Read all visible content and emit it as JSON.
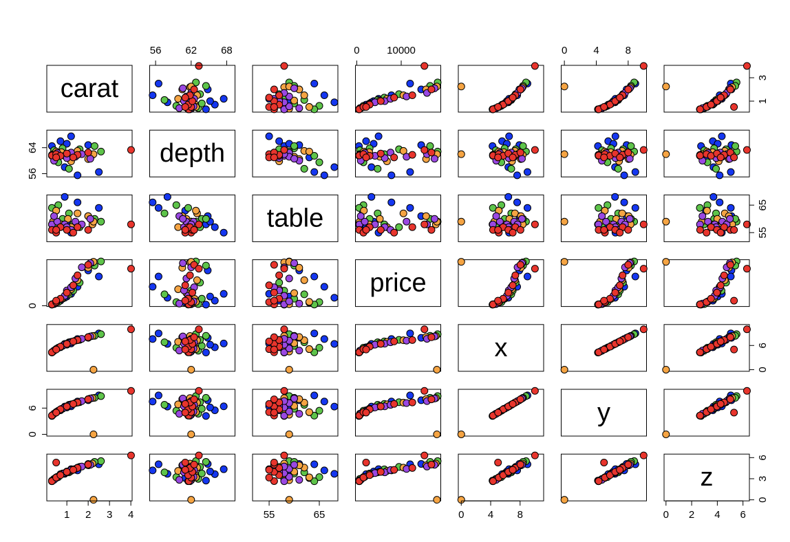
{
  "chart_data": {
    "type": "pairs",
    "variables": [
      {
        "label": "carat",
        "lim": [
          0.06,
          4.06
        ],
        "xticks": [
          1,
          2,
          3,
          4
        ],
        "yticks": [
          1,
          3
        ]
      },
      {
        "label": "depth",
        "lim": [
          55.0,
          69.4
        ],
        "xticks": [
          56,
          62,
          68
        ],
        "yticks": [
          56,
          64
        ]
      },
      {
        "label": "table",
        "lim": [
          51.7,
          68.7
        ],
        "xticks": [
          55,
          65
        ],
        "yticks": [
          55,
          65
        ]
      },
      {
        "label": "price",
        "lim": [
          -300,
          18900
        ],
        "xticks": [
          0,
          10000
        ],
        "yticks": [
          0
        ]
      },
      {
        "label": "x",
        "lim": [
          -0.4,
          11.2
        ],
        "xticks": [
          0,
          4,
          8
        ],
        "yticks": [
          0,
          6
        ]
      },
      {
        "label": "y",
        "lim": [
          -0.4,
          10.3
        ],
        "xticks": [
          0,
          4,
          8
        ],
        "yticks": [
          0,
          6
        ]
      },
      {
        "label": "z",
        "lim": [
          -0.15,
          6.5
        ],
        "xticks": [
          0,
          2,
          4,
          6
        ],
        "yticks": [
          0,
          3,
          6
        ]
      }
    ],
    "series": [
      {
        "color": "#1537f0",
        "values": [
          [
            0.3,
            64.5,
            58,
            480,
            4.25,
            4.21,
            2.73
          ],
          [
            0.7,
            66.0,
            57,
            2100,
            5.55,
            5.5,
            3.65
          ],
          [
            1.0,
            65.2,
            59,
            3800,
            6.2,
            6.15,
            4.03
          ],
          [
            1.5,
            55.5,
            66,
            7800,
            7.6,
            7.5,
            4.18
          ],
          [
            0.9,
            58.0,
            68,
            3300,
            6.4,
            6.35,
            3.7
          ],
          [
            2.0,
            64.8,
            61,
            14500,
            7.9,
            7.8,
            5.1
          ],
          [
            1.2,
            67.5,
            55,
            4900,
            6.5,
            6.4,
            4.35
          ],
          [
            0.5,
            61.0,
            63,
            1300,
            5.1,
            5.05,
            3.1
          ],
          [
            2.5,
            56.5,
            64,
            12000,
            9.0,
            8.9,
            5.05
          ]
        ]
      },
      {
        "color": "#5ec44a",
        "values": [
          [
            0.4,
            63.2,
            58,
            700,
            4.7,
            4.72,
            2.98
          ],
          [
            0.8,
            63.8,
            60,
            2900,
            5.9,
            5.85,
            3.75
          ],
          [
            1.1,
            57.5,
            62,
            4700,
            6.8,
            6.75,
            3.9
          ],
          [
            1.6,
            63.5,
            57,
            9500,
            7.4,
            7.35,
            4.68
          ],
          [
            2.6,
            62.8,
            59,
            18200,
            8.8,
            8.75,
            5.5
          ],
          [
            2.3,
            64.5,
            60,
            16500,
            8.4,
            8.35,
            5.4
          ],
          [
            0.6,
            59.5,
            65,
            1500,
            5.45,
            5.4,
            3.23
          ],
          [
            1.3,
            62.0,
            58,
            6200,
            7.0,
            6.95,
            4.33
          ],
          [
            0.3,
            61.5,
            64,
            520,
            4.3,
            4.28,
            2.64
          ]
        ]
      },
      {
        "color": "#f5a443",
        "values": [
          [
            0.35,
            62.0,
            59,
            650,
            4.5,
            4.48,
            2.79
          ],
          [
            0.75,
            62.6,
            58,
            2800,
            5.8,
            5.83,
            3.64
          ],
          [
            1.05,
            61.2,
            60,
            5200,
            6.55,
            6.5,
            4.0
          ],
          [
            1.5,
            63.0,
            62,
            10500,
            7.3,
            7.25,
            4.58
          ],
          [
            2.0,
            60.5,
            61,
            15600,
            8.1,
            8.05,
            4.9
          ],
          [
            2.2,
            61.8,
            58,
            17800,
            8.35,
            8.3,
            5.15
          ],
          [
            0.5,
            62.8,
            63,
            1600,
            5.1,
            5.07,
            3.2
          ],
          [
            1.2,
            59.8,
            57,
            6800,
            6.9,
            6.85,
            4.11
          ],
          [
            2.25,
            62.0,
            59,
            18034,
            0,
            0,
            0
          ]
        ]
      },
      {
        "color": "#9a48e2",
        "values": [
          [
            0.3,
            61.8,
            58,
            600,
            4.3,
            4.27,
            2.65
          ],
          [
            0.55,
            62.4,
            59,
            1800,
            5.25,
            5.22,
            3.27
          ],
          [
            0.9,
            61.5,
            58,
            4100,
            6.2,
            6.15,
            3.8
          ],
          [
            1.0,
            60.8,
            57,
            6300,
            6.45,
            6.4,
            3.91
          ],
          [
            1.4,
            61.2,
            59,
            11200,
            7.2,
            7.15,
            4.39
          ],
          [
            1.7,
            62.0,
            58,
            15800,
            7.65,
            7.6,
            4.73
          ],
          [
            0.4,
            60.0,
            61,
            900,
            4.75,
            4.7,
            2.84
          ],
          [
            1.2,
            62.5,
            56,
            7600,
            6.8,
            6.75,
            4.23
          ],
          [
            2.1,
            60.6,
            60,
            17500,
            8.25,
            8.2,
            4.98
          ]
        ]
      },
      {
        "color": "#e8352d",
        "values": [
          [
            0.3,
            61.6,
            56,
            550,
            4.32,
            4.3,
            2.66
          ],
          [
            0.5,
            62.0,
            55,
            1500,
            5.1,
            5.08,
            3.16
          ],
          [
            0.7,
            61.5,
            57,
            2900,
            5.7,
            5.72,
            3.51
          ],
          [
            1.0,
            62.2,
            56,
            5400,
            6.4,
            6.37,
            3.97
          ],
          [
            1.5,
            61.8,
            57,
            12500,
            7.35,
            7.3,
            4.53
          ],
          [
            2.0,
            62.5,
            56,
            16800,
            8.05,
            8.0,
            5.02
          ],
          [
            1.3,
            61.0,
            55,
            8400,
            7.0,
            6.95,
            4.26
          ],
          [
            4.01,
            63.3,
            58,
            15223,
            10.02,
            9.94,
            6.31
          ],
          [
            0.5,
            61.0,
            56,
            2100,
            5.0,
            4.97,
            5.3
          ]
        ]
      }
    ]
  }
}
